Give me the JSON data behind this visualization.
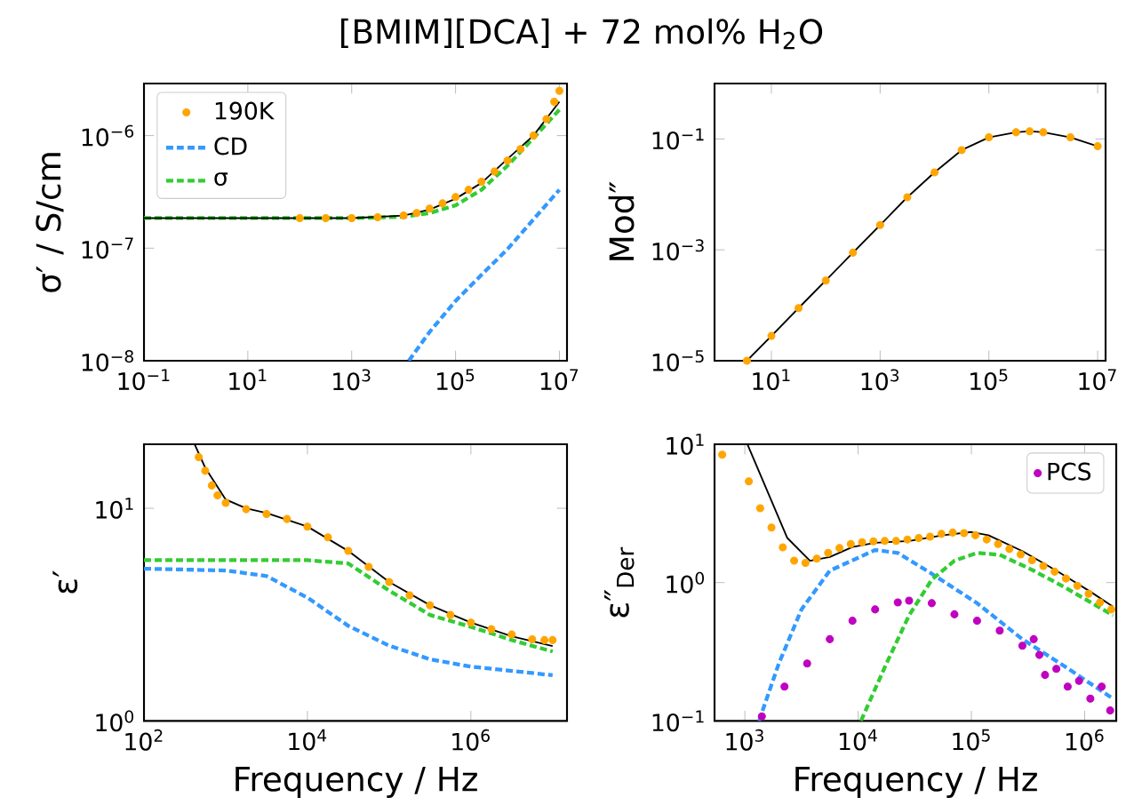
{
  "chart_data": [
    {
      "type": "line",
      "title": "[BMIM][DCA] + 72 mol% H$_{2}$O",
      "ylabel": "σ′ / S/cm",
      "log": "xy",
      "legend": "top left",
      "xlim": [
        0.1,
        14000000.0
      ],
      "ylim": [
        1e-08,
        2.9e-06
      ],
      "xticks": [
        {
          "value": 0.1,
          "label": "10$^{−1}$"
        },
        {
          "value": 10,
          "label": "10$^{1}$"
        },
        {
          "value": 1000,
          "label": "10$^{3}$"
        },
        {
          "value": 100000,
          "label": "10$^{5}$"
        },
        {
          "value": 10000000,
          "label": "10$^{7}$"
        }
      ],
      "yticks": [
        {
          "value": 1e-08,
          "label": "10$^{−8}$"
        },
        {
          "value": 1e-07,
          "label": "10$^{−7}$"
        },
        {
          "value": 1e-06,
          "label": "10$^{−6}$"
        }
      ],
      "series": [
        {
          "name": "190K",
          "type": "scatter",
          "marker": "circle",
          "color": "#ffa500",
          "x": [
            100.0,
            316.0,
            1000.0,
            3160.0,
            10000.0,
            17800.0,
            31600.0,
            56200.0,
            100000.0,
            178000.0,
            316000.0,
            562000.0,
            1000000.0,
            1780000.0,
            3160000.0,
            5620000.0,
            7940000.0,
            10000000.0
          ],
          "values": [
            1.85e-07,
            1.85e-07,
            1.85e-07,
            1.88e-07,
            1.95e-07,
            2.05e-07,
            2.25e-07,
            2.5e-07,
            2.85e-07,
            3.3e-07,
            3.9e-07,
            4.8e-07,
            6e-07,
            7.6e-07,
            1e-06,
            1.4e-06,
            2e-06,
            2.5e-06
          ]
        },
        {
          "name": "CD",
          "type": "line",
          "line_style": "dashed",
          "color": "#3399ff",
          "x": [
            12600.0,
            31600.0,
            100000.0,
            316000.0,
            1000000.0,
            3160000.0,
            10000000.0
          ],
          "values": [
            1e-08,
            1.8e-08,
            3.4e-08,
            5.8e-08,
            9.8e-08,
            1.8e-07,
            3.3e-07
          ]
        },
        {
          "name": "σ",
          "type": "line",
          "line_style": "dashed",
          "color": "#33cc33",
          "x": [
            0.1,
            10.0,
            1000.0,
            10000.0,
            31600.0,
            100000.0,
            316000.0,
            1000000.0,
            3160000.0,
            10000000.0
          ],
          "values": [
            1.85e-07,
            1.85e-07,
            1.85e-07,
            1.9e-07,
            2.05e-07,
            2.4e-07,
            3.3e-07,
            5.4e-07,
            9.5e-07,
            1.7e-06
          ]
        },
        {
          "type": "line",
          "line_style": "solid",
          "color": "#000000",
          "x": [
            0.1,
            10.0,
            1000.0,
            10000.0,
            31600.0,
            100000.0,
            316000.0,
            1000000.0,
            3160000.0,
            10000000.0
          ],
          "values": [
            1.85e-07,
            1.85e-07,
            1.85e-07,
            1.95e-07,
            2.2e-07,
            2.75e-07,
            3.8e-07,
            6.2e-07,
            1e-06,
            2e-06
          ]
        }
      ]
    },
    {
      "type": "line",
      "ylabel": "Mod″",
      "log": "xy",
      "xlim": [
        0.9,
        14000000.0
      ],
      "ylim": [
        1e-05,
        1
      ],
      "xticks": [
        {
          "value": 10,
          "label": "10$^{1}$"
        },
        {
          "value": 1000,
          "label": "10$^{3}$"
        },
        {
          "value": 100000,
          "label": "10$^{5}$"
        },
        {
          "value": 10000000,
          "label": "10$^{7}$"
        }
      ],
      "yticks": [
        {
          "value": 1e-05,
          "label": "10$^{−5}$"
        },
        {
          "value": 0.001,
          "label": "10$^{−3}$"
        },
        {
          "value": 0.1,
          "label": "10$^{−1}$"
        }
      ],
      "series": [
        {
          "type": "scatter",
          "marker": "circle",
          "color": "#ffa500",
          "x": [
            3.55,
            10.0,
            31.6,
            100.0,
            316.0,
            1000.0,
            3160.0,
            10000.0,
            31600.0,
            100000.0,
            316000.0,
            562000.0,
            1000000.0,
            3160000.0,
            10000000.0
          ],
          "values": [
            1e-05,
            2.8e-05,
            8.9e-05,
            0.00028,
            0.00089,
            0.0028,
            0.0089,
            0.025,
            0.063,
            0.107,
            0.132,
            0.138,
            0.132,
            0.107,
            0.074
          ]
        },
        {
          "type": "line",
          "line_style": "solid",
          "color": "#000000",
          "x": [
            3.55,
            10.0,
            31.6,
            100.0,
            316.0,
            1000.0,
            3160.0,
            10000.0,
            31600.0,
            100000.0,
            316000.0,
            562000.0,
            1000000.0,
            3160000.0,
            10000000.0
          ],
          "values": [
            1e-05,
            2.8e-05,
            8.9e-05,
            0.00028,
            0.00089,
            0.0028,
            0.0089,
            0.025,
            0.063,
            0.107,
            0.132,
            0.138,
            0.132,
            0.107,
            0.074
          ]
        }
      ]
    },
    {
      "type": "line",
      "ylabel": "ε′",
      "xlabel": "Frequency / Hz",
      "log": "xy",
      "xlim": [
        100,
        15000000.0
      ],
      "ylim": [
        1,
        20
      ],
      "xticks": [
        {
          "value": 100,
          "label": "10$^{2}$"
        },
        {
          "value": 10000,
          "label": "10$^{4}$"
        },
        {
          "value": 1000000,
          "label": "10$^{6}$"
        }
      ],
      "yticks": [
        {
          "value": 1,
          "label": "10$^{0}$"
        },
        {
          "value": 10,
          "label": "10$^{1}$"
        }
      ],
      "series": [
        {
          "type": "scatter",
          "marker": "circle",
          "color": "#ffa500",
          "x": [
            468,
            562,
            676,
            794,
            1000.0,
            1780.0,
            3160.0,
            5620.0,
            10000.0,
            17800.0,
            31600.0,
            56200.0,
            100000.0,
            178000.0,
            316000.0,
            562000.0,
            1000000.0,
            1780000.0,
            3160000.0,
            5620000.0,
            7940000.0,
            10000000.0
          ],
          "values": [
            17.4,
            15,
            12.8,
            11.5,
            10.6,
            9.9,
            9.4,
            8.9,
            8.2,
            7.3,
            6.3,
            5.3,
            4.5,
            3.9,
            3.5,
            3.15,
            2.9,
            2.7,
            2.55,
            2.42,
            2.4,
            2.4
          ]
        },
        {
          "type": "line",
          "line_style": "dashed",
          "color": "#3399ff",
          "x": [
            100.0,
            1000.0,
            3160.0,
            10000.0,
            31600.0,
            100000.0,
            316000.0,
            1000000.0,
            3160000.0,
            10000000.0
          ],
          "values": [
            5.2,
            5.1,
            4.8,
            3.8,
            2.8,
            2.26,
            1.95,
            1.8,
            1.72,
            1.64
          ]
        },
        {
          "type": "line",
          "line_style": "dashed",
          "color": "#33cc33",
          "x": [
            100.0,
            10000.0,
            31600.0,
            100000.0,
            316000.0,
            1000000.0,
            3160000.0,
            10000000.0
          ],
          "values": [
            5.7,
            5.7,
            5.5,
            4.1,
            3.15,
            2.77,
            2.4,
            2.12
          ]
        },
        {
          "type": "line",
          "line_style": "solid",
          "color": "#000000",
          "x": [
            417,
            562,
            1000.0,
            1780.0,
            3160.0,
            10000.0,
            31600.0,
            100000.0,
            316000.0,
            1000000.0,
            3160000.0,
            10000000.0
          ],
          "values": [
            20,
            15.5,
            11,
            10,
            9.5,
            8.2,
            6.3,
            4.5,
            3.5,
            2.9,
            2.5,
            2.25
          ]
        }
      ]
    },
    {
      "type": "line",
      "ylabel": "ε″$_{Der}$",
      "xlabel": "Frequency / Hz",
      "log": "xy",
      "legend": "top right",
      "xlim": [
        540,
        1900000.0
      ],
      "ylim": [
        0.1,
        10
      ],
      "xticks": [
        {
          "value": 1000,
          "label": "10$^{3}$"
        },
        {
          "value": 10000,
          "label": "10$^{4}$"
        },
        {
          "value": 100000,
          "label": "10$^{5}$"
        },
        {
          "value": 1000000,
          "label": "10$^{6}$"
        }
      ],
      "yticks": [
        {
          "value": 0.1,
          "label": "10$^{−1}$"
        },
        {
          "value": 1,
          "label": "10$^{0}$"
        },
        {
          "value": 10,
          "label": "10$^{1}$"
        }
      ],
      "series": [
        {
          "type": "scatter",
          "marker": "circle",
          "color": "#ffa500",
          "x": [
            631,
            1084,
            1365,
            1718,
            2163,
            2723,
            3428,
            4315,
            5433,
            6839,
            8610,
            10840.0,
            13650.0,
            17180.0,
            21630.0,
            27230.0,
            34280.0,
            43150.0,
            54330.0,
            68390.0,
            86100.0,
            108400.0,
            136500.0,
            171800.0,
            216300.0,
            272300.0,
            342800.0,
            431500.0,
            543300.0,
            683900.0,
            861000.0,
            1084000.0,
            1365000.0,
            1718000.0
          ],
          "values": [
            8.4,
            5.4,
            3.45,
            2.5,
            1.8,
            1.44,
            1.39,
            1.49,
            1.64,
            1.78,
            1.9,
            1.96,
            1.99,
            2.0,
            2.0,
            2.05,
            2.1,
            2.15,
            2.25,
            2.3,
            2.28,
            2.2,
            2.05,
            1.9,
            1.75,
            1.6,
            1.45,
            1.32,
            1.2,
            1.07,
            0.95,
            0.83,
            0.72,
            0.64
          ]
        },
        {
          "type": "line",
          "line_style": "dashed",
          "color": "#3399ff",
          "x": [
            1334,
            1995,
            3162,
            5623,
            14130.0,
            22390.0,
            44670.0,
            112200.0,
            281800.0,
            707900.0,
            1778000.0
          ],
          "values": [
            0.1,
            0.26,
            0.64,
            1.22,
            1.72,
            1.64,
            1.16,
            0.71,
            0.39,
            0.24,
            0.145
          ]
        },
        {
          "type": "line",
          "line_style": "dashed",
          "color": "#33cc33",
          "x": [
            10590.0,
            17780.0,
            28180.0,
            44670.0,
            70790.0,
            112200.0,
            177800.0,
            354800.0,
            707900.0,
            1778000.0
          ],
          "values": [
            0.1,
            0.26,
            0.58,
            1.05,
            1.44,
            1.64,
            1.59,
            1.22,
            0.9,
            0.58
          ]
        },
        {
          "type": "line",
          "line_style": "solid",
          "color": "#000000",
          "x": [
            1059,
            2371,
            3758,
            5623,
            8913,
            14130.0,
            28180.0,
            56230.0,
            100000.0,
            141300.0,
            281800.0,
            562300.0,
            1122000.0,
            1778000.0
          ],
          "values": [
            9.9,
            2.1,
            1.44,
            1.53,
            1.81,
            1.94,
            2.0,
            2.2,
            2.32,
            2.2,
            1.69,
            1.22,
            0.86,
            0.67
          ]
        },
        {
          "name": "PCS",
          "type": "scatter",
          "marker": "circle",
          "color": "#bf00bf",
          "x": [
            1413,
            2239,
            3548,
            5623,
            8913,
            14130.0,
            22390.0,
            28180.0,
            44670.0,
            70790.0,
            112200.0,
            177800.0,
            281800.0,
            354800.0,
            398100.0,
            446700.0,
            562300.0,
            707900.0,
            891300.0,
            1122000.0,
            1413000.0,
            1679000.0
          ],
          "values": [
            0.108,
            0.177,
            0.26,
            0.39,
            0.53,
            0.64,
            0.72,
            0.74,
            0.71,
            0.59,
            0.53,
            0.45,
            0.35,
            0.39,
            0.3,
            0.215,
            0.238,
            0.177,
            0.195,
            0.145,
            0.177,
            0.119
          ]
        }
      ]
    }
  ]
}
